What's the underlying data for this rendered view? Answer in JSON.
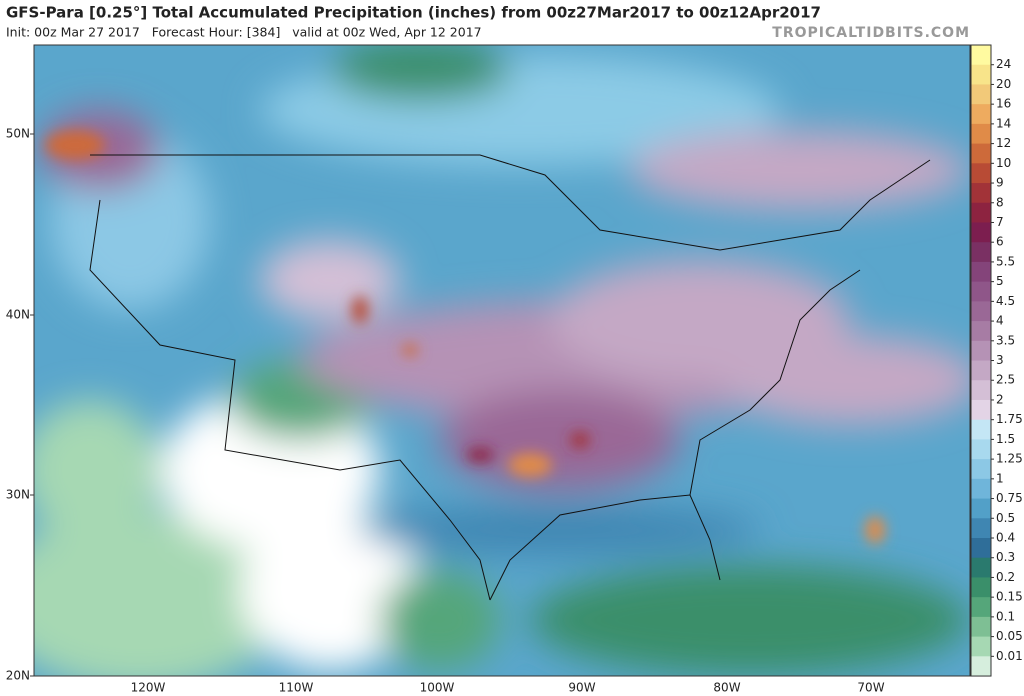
{
  "header": {
    "title": "GFS-Para [0.25°] Total Accumulated Precipitation (inches) from 00z27Mar2017 to 00z12Apr2017",
    "subtitle": "Init: 00z Mar 27 2017   Forecast Hour: [384]   valid at 00z Wed, Apr 12 2017",
    "credit": "TROPICALTIDBITS.COM"
  },
  "map": {
    "lat_labels": [
      "50N",
      "40N",
      "30N",
      "20N"
    ],
    "lon_labels": [
      "120W",
      "110W",
      "100W",
      "90W",
      "80W",
      "70W"
    ]
  },
  "colorbar": {
    "labels": [
      "24",
      "20",
      "16",
      "14",
      "12",
      "10",
      "9",
      "8",
      "7",
      "6",
      "5.5",
      "5",
      "4.5",
      "4",
      "3.5",
      "3",
      "2.5",
      "2",
      "1.75",
      "1.5",
      "1.25",
      "1",
      "0.75",
      "0.5",
      "0.4",
      "0.3",
      "0.2",
      "0.15",
      "0.1",
      "0.05",
      "0.01"
    ],
    "colors": [
      "#fffaa0",
      "#f8e48a",
      "#f2c979",
      "#eeab5f",
      "#e08b48",
      "#cd6a3a",
      "#b84b35",
      "#a23338",
      "#8d2340",
      "#7c1e4f",
      "#7a3063",
      "#84447a",
      "#8f5689",
      "#9a6896",
      "#a77ca4",
      "#b592b5",
      "#c4a8c5",
      "#d4bfd6",
      "#e3d4e6",
      "#c4e6f5",
      "#a8d9ee",
      "#8cc8e5",
      "#6fb5da",
      "#52a0c8",
      "#3f86b2",
      "#2f6e99",
      "#2a7a6e",
      "#3a8f6a",
      "#55a67a",
      "#7ebf94",
      "#a6d8b3",
      "#d6eedd"
    ]
  }
}
